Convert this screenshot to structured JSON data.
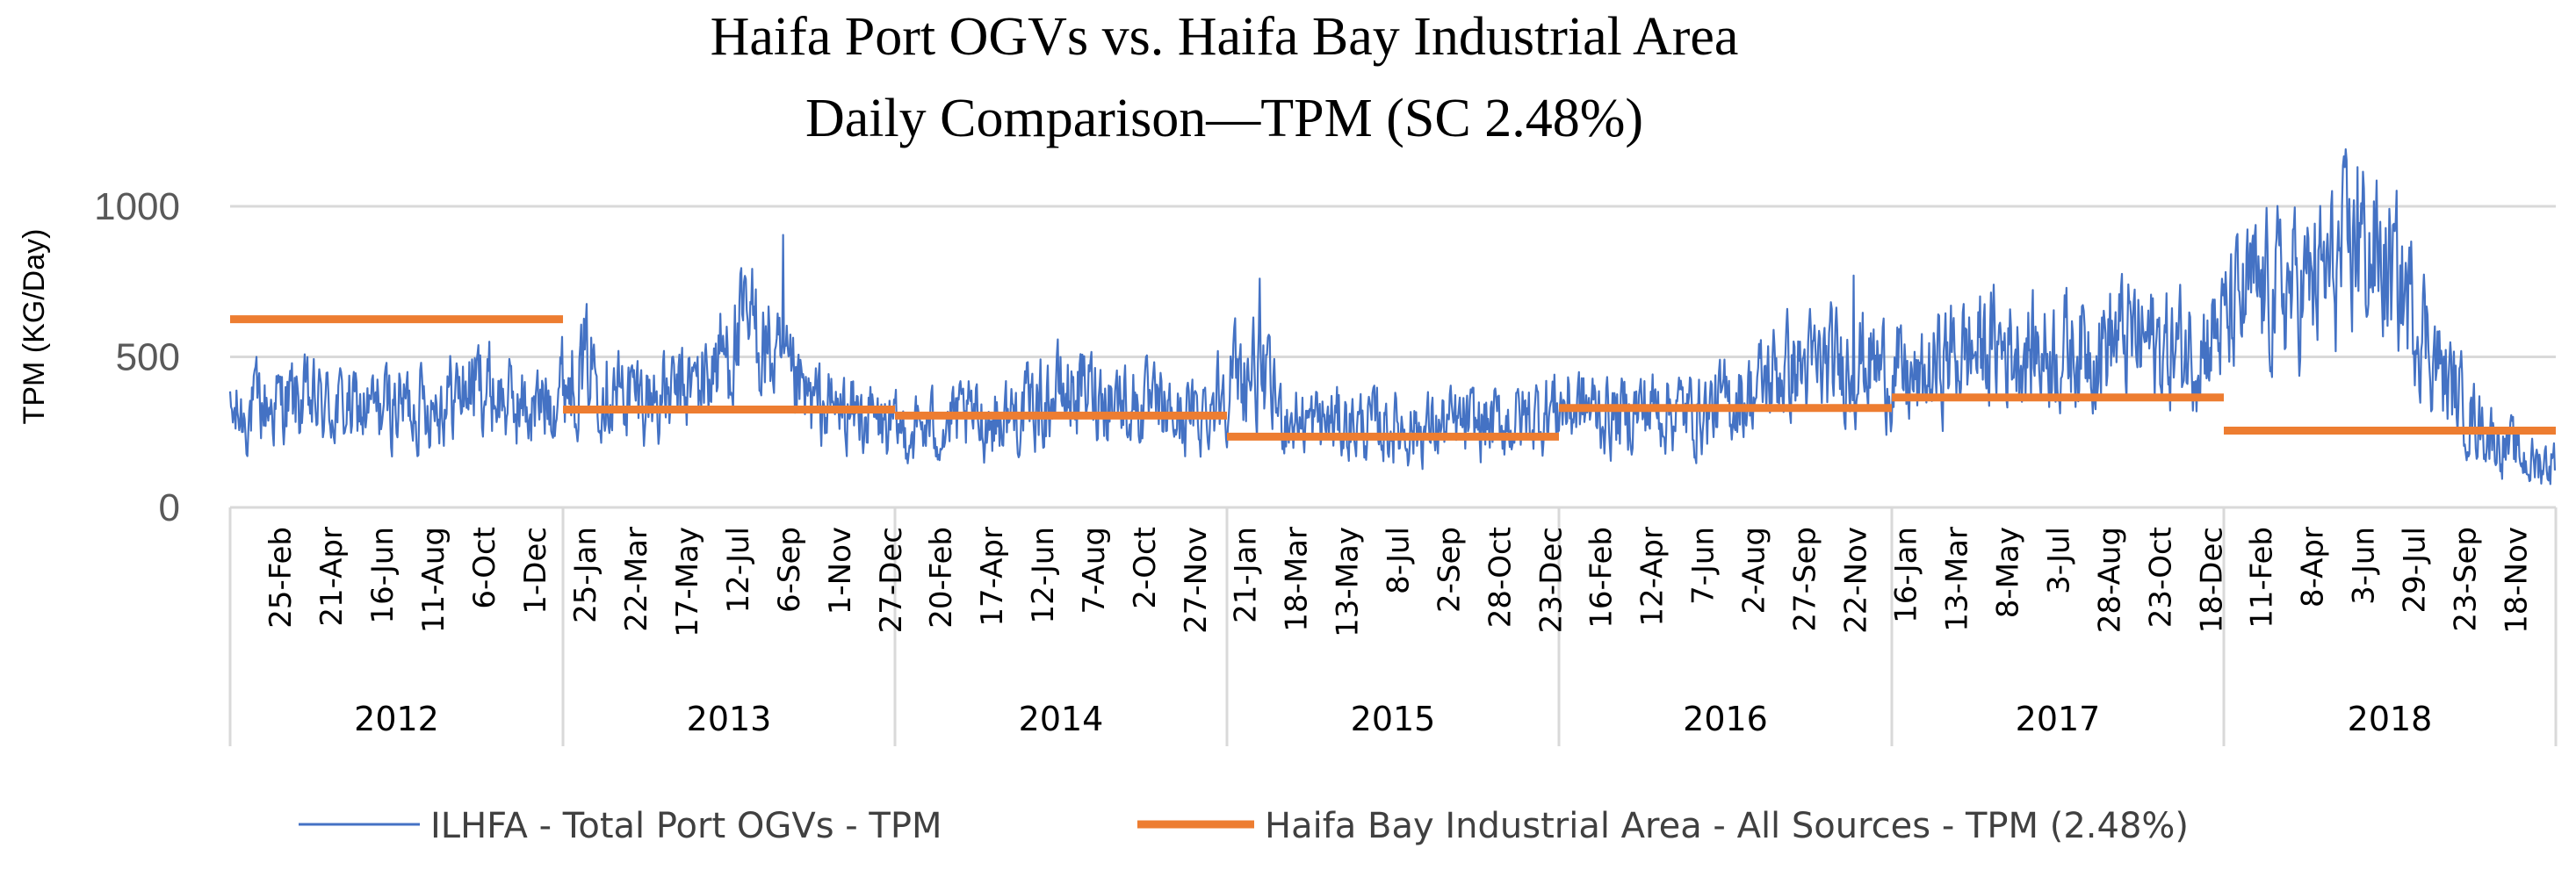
{
  "chart_data": {
    "type": "line",
    "title_line1": "Haifa Port OGVs vs. Haifa Bay Industrial Area",
    "title_line2": "Daily Comparison—TPM (SC 2.48%)",
    "ylabel": "TPM (KG/Day)",
    "ylim": [
      0,
      1000
    ],
    "yticks": [
      "0",
      "500",
      "1000"
    ],
    "grid": true,
    "legend_position": "bottom",
    "years": [
      {
        "label": "2012",
        "ticks": [
          "25-Feb",
          "21-Apr",
          "16-Jun",
          "11-Aug",
          "6-Oct",
          "1-Dec"
        ]
      },
      {
        "label": "2013",
        "ticks": [
          "25-Jan",
          "22-Mar",
          "17-May",
          "12-Jul",
          "6-Sep",
          "1-Nov",
          "27-Dec"
        ]
      },
      {
        "label": "2014",
        "ticks": [
          "20-Feb",
          "17-Apr",
          "12-Jun",
          "7-Aug",
          "2-Oct",
          "27-Nov"
        ]
      },
      {
        "label": "2015",
        "ticks": [
          "21-Jan",
          "18-Mar",
          "13-May",
          "8-Jul",
          "2-Sep",
          "28-Oct",
          "23-Dec"
        ]
      },
      {
        "label": "2016",
        "ticks": [
          "16-Feb",
          "12-Apr",
          "7-Jun",
          "2-Aug",
          "27-Sep",
          "22-Nov"
        ]
      },
      {
        "label": "2017",
        "ticks": [
          "16-Jan",
          "13-Mar",
          "8-May",
          "3-Jul",
          "28-Aug",
          "23-Oct",
          "18-Dec"
        ]
      },
      {
        "label": "2018",
        "ticks": [
          "11-Feb",
          "8-Apr",
          "3-Jun",
          "29-Jul",
          "23-Sep",
          "18-Nov"
        ]
      }
    ],
    "series": [
      {
        "name": "ILHFA - Total Port OGVs - TPM",
        "color": "#4472C4",
        "kind": "daily-line",
        "monthly_means": [
          290,
          330,
          350,
          340,
          330,
          320,
          340,
          350,
          370,
          420,
          350,
          320,
          420,
          480,
          380,
          370,
          360,
          420,
          520,
          600,
          420,
          340,
          320,
          300,
          250,
          260,
          280,
          290,
          300,
          330,
          380,
          390,
          370,
          330,
          300,
          300,
          420,
          460,
          310,
          280,
          280,
          270,
          270,
          260,
          270,
          270,
          280,
          300,
          340,
          330,
          300,
          330,
          330,
          310,
          340,
          380,
          460,
          460,
          470,
          490,
          450,
          400,
          500,
          520,
          540,
          520,
          520,
          540,
          560,
          560,
          520,
          540,
          600,
          700,
          720,
          730,
          780,
          880,
          780,
          660,
          430,
          300,
          220,
          150
        ],
        "peaks": [
          {
            "date": "2013-08-31",
            "value": 905
          },
          {
            "date": "2018-05-28",
            "value": 1130
          },
          {
            "date": "2015-02-06",
            "value": 760
          },
          {
            "date": "2016-11-20",
            "value": 770
          }
        ]
      },
      {
        "name": "Haifa Bay Industrial Area - All Sources - TPM (2.48%)",
        "color": "#ED7D31",
        "kind": "step",
        "annual_values": [
          {
            "year": "2012",
            "value": 625
          },
          {
            "year": "2013",
            "value": 325
          },
          {
            "year": "2014",
            "value": 305
          },
          {
            "year": "2015",
            "value": 235
          },
          {
            "year": "2016",
            "value": 330
          },
          {
            "year": "2017",
            "value": 365
          },
          {
            "year": "2018",
            "value": 255
          }
        ]
      }
    ]
  }
}
